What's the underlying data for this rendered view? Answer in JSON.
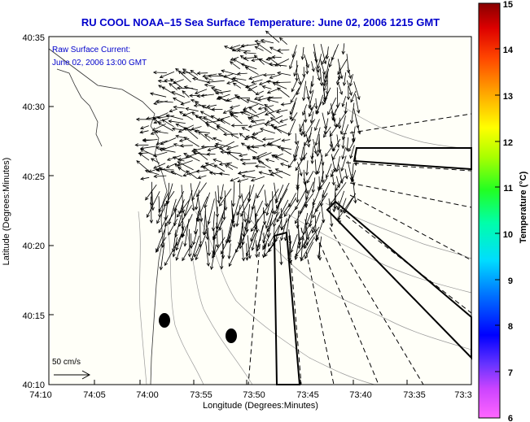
{
  "title": "RU COOL  NOAA–15  Sea Surface Temperature:  June 02, 2006 1215 GMT",
  "annotation": {
    "line1": "Raw Surface Current:",
    "line2": "June 02, 2006 13:00 GMT"
  },
  "scale_label": "50 cm/s",
  "axes": {
    "xlabel": "Longitude (Degrees:Minutes)",
    "ylabel": "Latitude (Degrees:Minutes)",
    "xticks": [
      "74:10",
      "74:05",
      "74:00",
      "73:55",
      "73:50",
      "73:45",
      "73:40",
      "73:35",
      "73:3"
    ],
    "yticks": [
      "40:35",
      "40:30",
      "40:25",
      "40:20",
      "40:15",
      "40:10"
    ]
  },
  "colorbar": {
    "label": "Temperature (°C)",
    "ticks": [
      "15",
      "14",
      "13",
      "12",
      "11",
      "10",
      "9",
      "8",
      "7",
      "6"
    ]
  },
  "colors": {
    "title": "#0000cc",
    "land": "#fffff0",
    "vectors": "#000000",
    "contours": "#9a9a9a"
  }
}
